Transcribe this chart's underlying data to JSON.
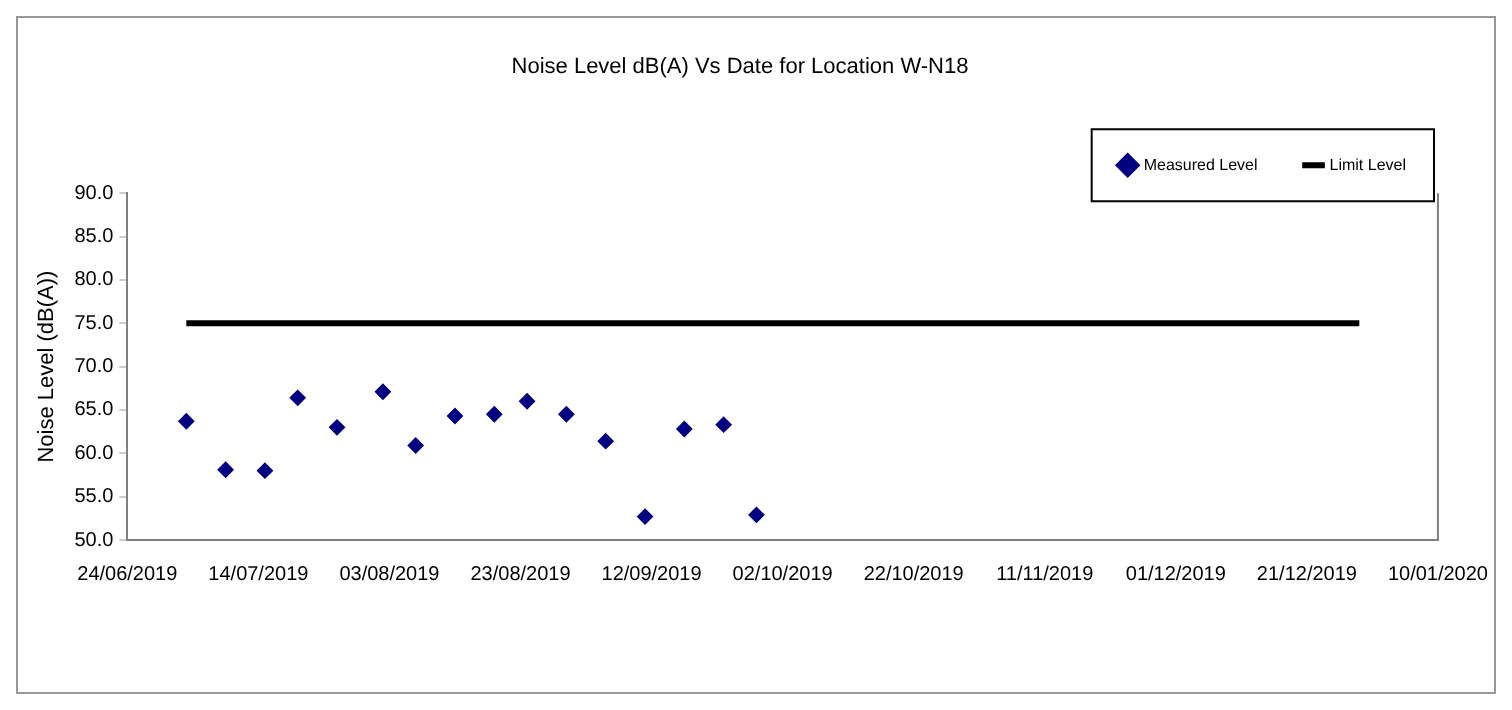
{
  "chart_data": {
    "type": "scatter",
    "title": "Noise Level dB(A) Vs Date for Location W-N18",
    "ylabel": "Noise Level (dB(A))",
    "series": [
      {
        "name": "Measured Level",
        "type": "scatter",
        "color": "#000080",
        "marker": "diamond",
        "x": [
          "2019-07-03",
          "2019-07-09",
          "2019-07-15",
          "2019-07-20",
          "2019-07-26",
          "2019-08-02",
          "2019-08-07",
          "2019-08-13",
          "2019-08-19",
          "2019-08-24",
          "2019-08-30",
          "2019-09-05",
          "2019-09-11",
          "2019-09-17",
          "2019-09-23",
          "2019-09-28"
        ],
        "values": [
          63.7,
          58.1,
          58.0,
          66.4,
          63.0,
          67.1,
          60.9,
          64.3,
          64.5,
          66.0,
          64.5,
          61.4,
          52.7,
          62.8,
          63.3,
          52.9
        ]
      },
      {
        "name": "Limit Level",
        "type": "line",
        "color": "#000000",
        "marker": "none",
        "line_style": "solid",
        "x": [
          "2019-07-03",
          "2019-12-29"
        ],
        "values": [
          75,
          75
        ]
      }
    ],
    "xlim": [
      "2019-06-24",
      "2020-01-10"
    ],
    "xticks": [
      {
        "value": "2019-06-24",
        "label": "24/06/2019"
      },
      {
        "value": "2019-07-14",
        "label": "14/07/2019"
      },
      {
        "value": "2019-08-03",
        "label": "03/08/2019"
      },
      {
        "value": "2019-08-23",
        "label": "23/08/2019"
      },
      {
        "value": "2019-09-12",
        "label": "12/09/2019"
      },
      {
        "value": "2019-10-02",
        "label": "02/10/2019"
      },
      {
        "value": "2019-10-22",
        "label": "22/10/2019"
      },
      {
        "value": "2019-11-11",
        "label": "11/11/2019"
      },
      {
        "value": "2019-12-01",
        "label": "01/12/2019"
      },
      {
        "value": "2019-12-21",
        "label": "21/12/2019"
      },
      {
        "value": "2020-01-10",
        "label": "10/01/2020"
      }
    ],
    "ylim": [
      50,
      90
    ],
    "yticks": [
      {
        "value": 50,
        "label": "50.0"
      },
      {
        "value": 55,
        "label": "55.0"
      },
      {
        "value": 60,
        "label": "60.0"
      },
      {
        "value": 65,
        "label": "65.0"
      },
      {
        "value": 70,
        "label": "70.0"
      },
      {
        "value": 75,
        "label": "75.0"
      },
      {
        "value": 80,
        "label": "80.0"
      },
      {
        "value": 85,
        "label": "85.0"
      },
      {
        "value": 90,
        "label": "90.0"
      }
    ],
    "grid": false,
    "legend": "top right"
  }
}
